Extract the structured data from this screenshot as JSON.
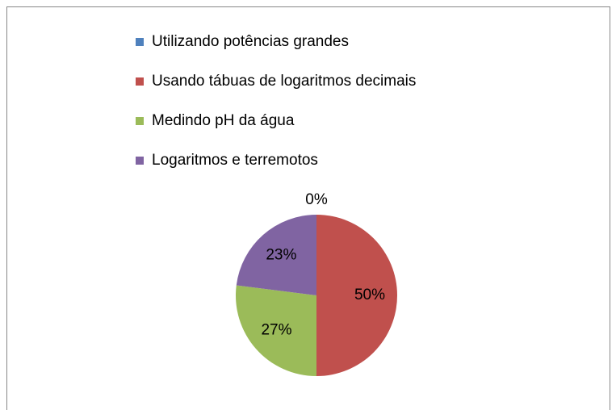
{
  "chart_data": {
    "type": "pie",
    "categories": [
      "Utilizando potências grandes",
      "Usando tábuas de logaritmos decimais",
      "Medindo pH da água",
      "Logaritmos e terremotos"
    ],
    "values": [
      0,
      50,
      27,
      23
    ],
    "value_labels": [
      "0%",
      "50%",
      "27%",
      "23%"
    ],
    "colors": [
      "#4f81bd",
      "#c0504d",
      "#9bbb59",
      "#8064a2"
    ],
    "legend": "top"
  }
}
